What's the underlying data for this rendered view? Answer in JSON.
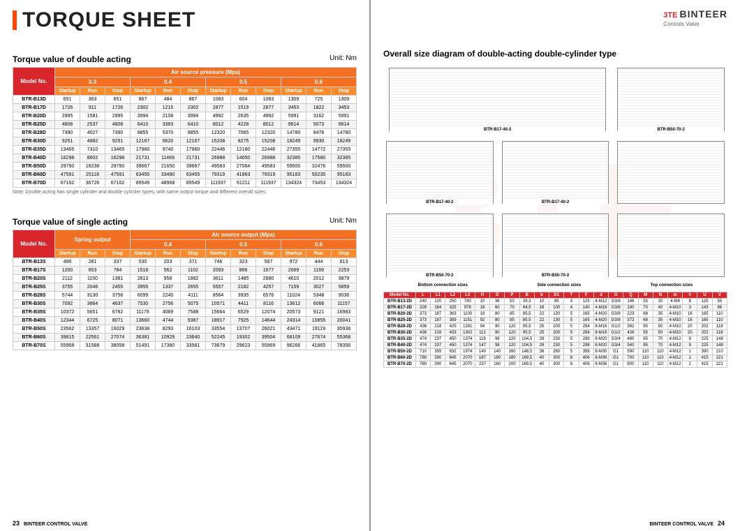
{
  "page_title": "TORQUE SHEET",
  "brand": {
    "name": "BINTEER",
    "sub": "Controls Valve"
  },
  "section1": {
    "title": "Torque value of double acting",
    "unit": "Unit: Nm",
    "header_group": "Air source pressure (Mpa)",
    "pressures": [
      "0.3",
      "0.4",
      "0.5",
      "0.6"
    ],
    "subcols": [
      "Startup",
      "Run",
      "Stop"
    ],
    "rows": [
      {
        "m": "BTR-B13D",
        "v": [
          651,
          363,
          651,
          867,
          484,
          867,
          1083,
          604,
          1083,
          1309,
          725,
          1309
        ]
      },
      {
        "m": "BTR-B17D",
        "v": [
          1726,
          911,
          1726,
          2302,
          1215,
          2302,
          2877,
          1519,
          2877,
          3453,
          1822,
          3453
        ]
      },
      {
        "m": "BTR-B20D",
        "v": [
          2995,
          1581,
          2995,
          3994,
          2108,
          3994,
          4992,
          2635,
          4992,
          5991,
          3162,
          5991
        ]
      },
      {
        "m": "BTR-B25D",
        "v": [
          4808,
          2537,
          4808,
          6410,
          3383,
          6410,
          8012,
          4228,
          8012,
          9614,
          5073,
          9614
        ]
      },
      {
        "m": "BTR-B28D",
        "v": [
          7390,
          4027,
          7390,
          9855,
          5370,
          9855,
          12320,
          7065,
          12320,
          14780,
          8478,
          14780
        ]
      },
      {
        "m": "BTR-B30D",
        "v": [
          9251,
          4882,
          9251,
          12167,
          6620,
          12167,
          15208,
          8275,
          15208,
          18249,
          9930,
          18249
        ]
      },
      {
        "m": "BTR-B35D",
        "v": [
          13465,
          7310,
          13465,
          17960,
          9740,
          17960,
          22446,
          12180,
          22446,
          27355,
          14772,
          27355
        ]
      },
      {
        "m": "BTR-B40D",
        "v": [
          16298,
          8602,
          16298,
          21731,
          11469,
          21731,
          26988,
          14650,
          26988,
          32385,
          17580,
          32385
        ]
      },
      {
        "m": "BTR-B50D",
        "v": [
          29750,
          16238,
          29750,
          39667,
          21650,
          39667,
          49583,
          27064,
          49583,
          59500,
          32476,
          59500
        ]
      },
      {
        "m": "BTR-B60D",
        "v": [
          47591,
          25118,
          47591,
          63455,
          33490,
          63455,
          79319,
          41863,
          79319,
          95183,
          50235,
          95183
        ]
      },
      {
        "m": "BTR-B70D",
        "v": [
          67162,
          36726,
          67162,
          89549,
          48968,
          89549,
          111937,
          61211,
          111937,
          134324,
          73453,
          134324
        ]
      }
    ],
    "note": "Note: Double acting has single cylinder and double cylinder types, with same output torque and different overall sizes."
  },
  "section2": {
    "title": "Torque value of single acting",
    "unit": "Unit: Nm",
    "spring_header": "Spring output",
    "air_header": "Air source output (Mpa)",
    "pressures": [
      "0.4",
      "0.5",
      "0.6"
    ],
    "subcols": [
      "Startup",
      "Run",
      "Stop"
    ],
    "rows": [
      {
        "m": "BTR-B13S",
        "v": [
          496,
          281,
          337,
          530,
          203,
          371,
          746,
          323,
          587,
          972,
          444,
          813
        ]
      },
      {
        "m": "BTR-B17S",
        "v": [
          1200,
          653,
          784,
          1518,
          562,
          1102,
          2093,
          866,
          1677,
          2669,
          1169,
          2253
        ]
      },
      {
        "m": "BTR-B20S",
        "v": [
          2112,
          1150,
          1381,
          2613,
          958,
          1882,
          3611,
          1485,
          2880,
          4610,
          2012,
          3879
        ]
      },
      {
        "m": "BTR-B25S",
        "v": [
          3755,
          2046,
          2455,
          3955,
          1337,
          2655,
          5557,
          2182,
          4257,
          7159,
          3027,
          5859
        ]
      },
      {
        "m": "BTR-B28S",
        "v": [
          5744,
          3130,
          3756,
          6099,
          2240,
          4111,
          8564,
          3935,
          6576,
          11024,
          5348,
          9036
        ]
      },
      {
        "m": "BTR-B30S",
        "v": [
          7092,
          3864,
          4637,
          7530,
          2756,
          5075,
          10571,
          4411,
          8116,
          13612,
          6066,
          11157
        ]
      },
      {
        "m": "BTR-B35S",
        "v": [
          10372,
          5651,
          6782,
          11178,
          4089,
          7588,
          15664,
          6529,
          12074,
          20573,
          9121,
          16983
        ]
      },
      {
        "m": "BTR-B40S",
        "v": [
          12344,
          6725,
          8071,
          13660,
          4744,
          9387,
          18917,
          7925,
          14644,
          24314,
          10855,
          20041
        ]
      },
      {
        "m": "BTR-B50S",
        "v": [
          23562,
          13357,
          16029,
          23638,
          8293,
          16103,
          33554,
          13707,
          26021,
          43471,
          19119,
          35938
        ]
      },
      {
        "m": "BTR-B60S",
        "v": [
          39815,
          22561,
          27074,
          36381,
          10929,
          23640,
          52245,
          19302,
          39504,
          68109,
          27674,
          55368
        ]
      },
      {
        "m": "BTR-B70S",
        "v": [
          55968,
          31588,
          38058,
          51491,
          17380,
          33581,
          73879,
          29623,
          55969,
          96266,
          41865,
          78356
        ]
      }
    ]
  },
  "diagram": {
    "title": "Overall size diagram of double-acting double-cylinder type",
    "labels": [
      "BTR-B17-40-2",
      "BTR-B50-70-2",
      "BTR-B17-40-2",
      "BTR-B17-40-2",
      "",
      "BTR-B50-70-2",
      "BTR-B50-70-2",
      ""
    ],
    "sublabels": [
      "Bottom connection sizes",
      "Side connection sizes",
      "Top connection sizes"
    ]
  },
  "size_table": {
    "cols": [
      "Model No.",
      "L",
      "L1",
      "L2",
      "L3",
      "H",
      "D",
      "P",
      "B",
      "b",
      "D1",
      "T",
      "F",
      "d",
      "G",
      "Q",
      "M",
      "N",
      "m",
      "h",
      "U",
      "V"
    ],
    "rows": [
      [
        "BTR-B13-2D",
        240,
        120,
        250,
        740,
        10,
        36,
        50,
        "39,3",
        10,
        85,
        4,
        125,
        "4-M12",
        "G3/8",
        146,
        55,
        30,
        "4-M8",
        8,
        125,
        55
      ],
      [
        "BTR-B17-2D",
        328,
        164,
        325,
        978,
        18,
        60,
        70,
        "64,5",
        18,
        100,
        4,
        140,
        "4-M16",
        "G3/8",
        190,
        70,
        40,
        "4-M10",
        3,
        143,
        86
      ],
      [
        "BTR-B20-2D",
        373,
        187,
        363,
        1100,
        18,
        80,
        85,
        "85,5",
        22,
        130,
        5,
        165,
        "4-M20",
        "G3/8",
        223,
        68,
        35,
        "4-M10",
        16,
        165,
        110
      ],
      [
        "BTR-B25-2D",
        373,
        187,
        389,
        1151,
        92,
        80,
        85,
        "85,5",
        22,
        130,
        5,
        165,
        "4-M20",
        "G3/8",
        372,
        68,
        35,
        "4-M10",
        16,
        165,
        110
      ],
      [
        "BTR-B28-2D",
        436,
        218,
        425,
        1281,
        94,
        90,
        120,
        "95,5",
        25,
        200,
        5,
        254,
        "8-M16",
        "G1/2",
        392,
        95,
        50,
        "4-M10",
        20,
        202,
        118
      ],
      [
        "BTR-B30-2D",
        436,
        218,
        433,
        1302,
        112,
        90,
        120,
        "95,5",
        25,
        200,
        5,
        254,
        "8-M16",
        "G1/2",
        426,
        95,
        50,
        "4-M10",
        20,
        202,
        118
      ],
      [
        "BTR-B35-2D",
        474,
        237,
        450,
        1374,
        118,
        98,
        120,
        "104,5",
        28,
        230,
        5,
        298,
        "8-M20",
        "G3/4",
        480,
        95,
        70,
        "4-M12",
        9,
        225,
        148
      ],
      [
        "BTR-B40-2D",
        474,
        237,
        450,
        1374,
        147,
        98,
        120,
        "104,5",
        28,
        230,
        5,
        298,
        "8-M20",
        "G3/4",
        540,
        95,
        70,
        "4-M12",
        9,
        225,
        148
      ],
      [
        "BTR-B50-2D",
        710,
        355,
        632,
        1974,
        140,
        140,
        160,
        "148,5",
        36,
        260,
        5,
        356,
        "8-M30",
        "G1",
        590,
        110,
        110,
        "4-M12",
        1,
        390,
        210
      ],
      [
        "BTR-B60-2D",
        780,
        390,
        645,
        2070,
        187,
        160,
        180,
        "169,5",
        40,
        300,
        8,
        406,
        "8-M36",
        "G1",
        700,
        110,
        110,
        "4-M12",
        1,
        415,
        221
      ],
      [
        "BTR-B70-2D",
        780,
        390,
        645,
        2070,
        237,
        160,
        200,
        "169,5",
        40,
        300,
        8,
        406,
        "8-M36",
        "G1",
        800,
        110,
        110,
        "4-M12",
        1,
        415,
        221
      ]
    ]
  },
  "footer": {
    "left": "BINTEER CONTROL VALVE",
    "right": "BINTEER CONTROL VALVE",
    "page_left": "23",
    "page_right": "24"
  }
}
